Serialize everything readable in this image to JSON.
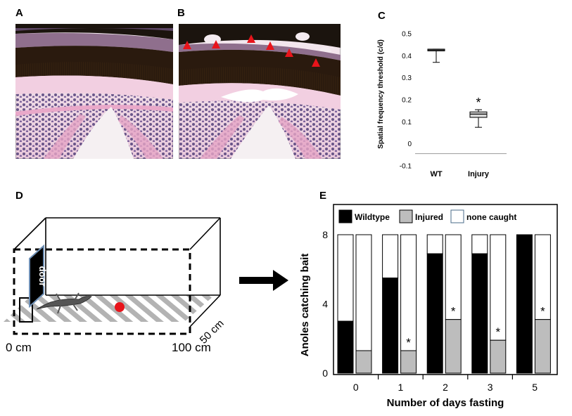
{
  "panels": {
    "a": {
      "label": "A"
    },
    "b": {
      "label": "B"
    },
    "c": {
      "label": "C"
    },
    "d": {
      "label": "D"
    },
    "e": {
      "label": "E"
    }
  },
  "arena": {
    "door_label": "door",
    "width_label": "50 cm",
    "origin_label": "0 cm",
    "length_label": "100 cm",
    "bait_color": "#e8141b",
    "arrow_color": "#000000"
  },
  "chart_data": [
    {
      "type": "box",
      "panel": "C",
      "ylabel": "Spatial frequency threshold (c/d)",
      "ylim": [
        -0.1,
        0.5
      ],
      "yticks": [
        "0.5",
        "0.4",
        "0.3",
        "0.2",
        "0.1",
        "0",
        "-0.1"
      ],
      "categories": [
        "WT",
        "Injury"
      ],
      "boxes": [
        {
          "category": "WT",
          "min": 0.37,
          "q1": 0.423,
          "median": 0.426,
          "q3": 0.43,
          "max": 0.43
        },
        {
          "category": "Injury",
          "min": 0.075,
          "q1": 0.12,
          "median": 0.135,
          "q3": 0.145,
          "max": 0.155
        }
      ],
      "annotations": [
        {
          "category": "Injury",
          "text": "*"
        }
      ]
    },
    {
      "type": "bar",
      "panel": "E",
      "ylabel": "Anoles catching bait",
      "xlabel": "Number of days fasting",
      "ylim": [
        0,
        8
      ],
      "yticks": [
        "0",
        "4",
        "8"
      ],
      "categories": [
        "0",
        "1",
        "2",
        "3",
        "5"
      ],
      "total": 8,
      "legend": {
        "placement": "top",
        "entries": [
          "Wildtype",
          "Injured",
          "none caught"
        ]
      },
      "series": [
        {
          "name": "Wildtype",
          "color": "#000000",
          "values": [
            3,
            5.5,
            6.9,
            6.9,
            8
          ]
        },
        {
          "name": "Injured",
          "color": "#bdbdbd",
          "values": [
            1.3,
            1.3,
            3.1,
            1.9,
            3.1
          ]
        }
      ],
      "none_caught_color": "#ffffff",
      "significance": [
        "",
        "*",
        "*",
        "*",
        "*"
      ]
    }
  ]
}
